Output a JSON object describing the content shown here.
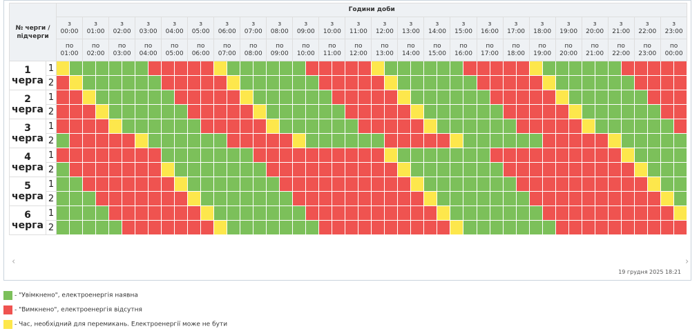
{
  "header": {
    "corner_label": "№ черги / підчерги",
    "hours_title": "Години доби",
    "from_prefix": "з",
    "to_prefix": "по",
    "hours_from": [
      "00:00",
      "01:00",
      "02:00",
      "03:00",
      "04:00",
      "05:00",
      "06:00",
      "07:00",
      "08:00",
      "09:00",
      "10:00",
      "11:00",
      "12:00",
      "13:00",
      "14:00",
      "15:00",
      "16:00",
      "17:00",
      "18:00",
      "19:00",
      "20:00",
      "21:00",
      "22:00",
      "23:00"
    ],
    "hours_to": [
      "01:00",
      "02:00",
      "03:00",
      "04:00",
      "05:00",
      "06:00",
      "07:00",
      "08:00",
      "09:00",
      "10:00",
      "11:00",
      "12:00",
      "13:00",
      "14:00",
      "15:00",
      "16:00",
      "17:00",
      "18:00",
      "19:00",
      "20:00",
      "21:00",
      "22:00",
      "23:00",
      "00:00"
    ]
  },
  "colors": {
    "on": "#7cc05a",
    "off": "#ef5350",
    "switch": "#fde74c"
  },
  "queues": [
    {
      "number": "1",
      "label": "черга",
      "subqueues": [
        {
          "label": "1",
          "slots": "yggggggrrrrryggggggrrrrryggggggrrrrryggggggrrrrr"
        },
        {
          "label": "2",
          "slots": "ryggggggrrrrryggggggrrrrryggggggrrrrryggggggrrrr"
        }
      ]
    },
    {
      "number": "2",
      "label": "черга",
      "subqueues": [
        {
          "label": "1",
          "slots": "rryggggggrrrrryggggggrrrrryggggggrrrrryggggggrrr"
        },
        {
          "label": "2",
          "slots": "rrryggggggrrrrryggggggrrrrryggggggrrrrryggggggrr"
        }
      ]
    },
    {
      "number": "3",
      "label": "черга",
      "subqueues": [
        {
          "label": "1",
          "slots": "rrrryggggggrrrrryggggggrrrrryggggggrrrrryggggggr"
        },
        {
          "label": "2",
          "slots": "grrrrryggggggrrrrryggggggrrrrryggggggrrrrryggggg"
        }
      ]
    },
    {
      "number": "4",
      "label": "черга",
      "subqueues": [
        {
          "label": "1",
          "slots": "rrrrrrrrgggggggrrrrrrrrrrygggggggrrrrrrrrrrygggg"
        },
        {
          "label": "2",
          "slots": "grrrrrrrygggggggrrrrrrrrrrygggggggrrrrrrrrrryggg"
        }
      ]
    },
    {
      "number": "5",
      "label": "черга",
      "subqueues": [
        {
          "label": "1",
          "slots": "ggrrrrrrrygggggggrrrrrrrrrrygggggggrrrrrrrrrrygg"
        },
        {
          "label": "2",
          "slots": "gggrrrrrrrygggggggrrrrrrrrrrygggggggrrrrrrrrrryg"
        }
      ]
    },
    {
      "number": "6",
      "label": "черга",
      "subqueues": [
        {
          "label": "1",
          "slots": "ggggrrrrrrrygggggggrrrrrrrrrrygggggggrrrrrrrrrry"
        },
        {
          "label": "2",
          "slots": "gggggrrrrrrrygggggggrrrrrrrrrrygggggggrrrrrrrrrr"
        }
      ]
    }
  ],
  "scroll": {
    "left_arrow": "‹",
    "right_arrow": "›"
  },
  "timestamp": "19 грудня 2025 18:21",
  "legend": [
    {
      "key": "on",
      "text": "- \"Увімкнено\", електроенергія наявна"
    },
    {
      "key": "off",
      "text": "- \"Вимкнено\", електроенергія відсутня"
    },
    {
      "key": "switch",
      "text": "- Час, необхідний для перемикань. Електроенергії може не бути"
    }
  ]
}
